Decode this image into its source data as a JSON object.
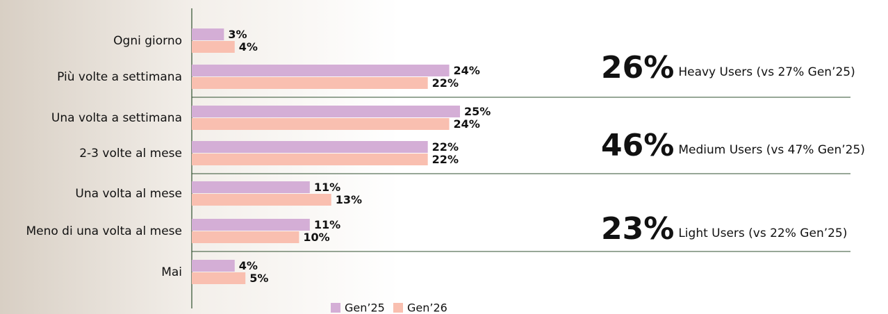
{
  "chart_data": {
    "type": "bar",
    "orientation": "horizontal",
    "categories": [
      "Ogni giorno",
      "Più volte a settimana",
      "Una volta a settimana",
      "2-3 volte al mese",
      "Una volta al mese",
      "Meno di una volta al mese",
      "Mai"
    ],
    "series": [
      {
        "name": "Gen’25",
        "color": "#d4aed6",
        "values": [
          3,
          24,
          25,
          22,
          11,
          11,
          4
        ],
        "value_labels": [
          "3%",
          "24%",
          "25%",
          "22%",
          "11%",
          "11%",
          "4%"
        ]
      },
      {
        "name": "Gen’26",
        "color": "#f9bfb0",
        "values": [
          4,
          22,
          24,
          22,
          13,
          10,
          5
        ],
        "value_labels": [
          "4%",
          "22%",
          "24%",
          "22%",
          "13%",
          "10%",
          "5%"
        ]
      }
    ],
    "annotations": [
      {
        "value": "26%",
        "text": "Heavy Users (vs 27% Gen’25)"
      },
      {
        "value": "46%",
        "text": "Medium Users (vs 47% Gen’25)"
      },
      {
        "value": "23%",
        "text": "Light Users (vs 22% Gen’25)"
      }
    ],
    "legend": "bottom"
  }
}
